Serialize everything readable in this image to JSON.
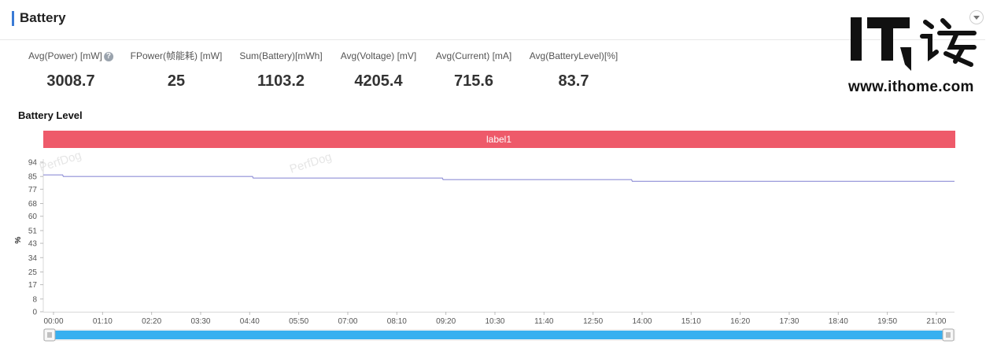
{
  "header": {
    "title": "Battery"
  },
  "stats": [
    {
      "label": "Avg(Power) [mW]",
      "value": "3008.7",
      "help_icon": "question-icon"
    },
    {
      "label": "FPower(帧能耗) [mW]",
      "value": "25"
    },
    {
      "label": "Sum(Battery)[mWh]",
      "value": "1103.2"
    },
    {
      "label": "Avg(Voltage) [mV]",
      "value": "4205.4"
    },
    {
      "label": "Avg(Current) [mA]",
      "value": "715.6"
    },
    {
      "label": "Avg(BatteryLevel)[%]",
      "value": "83.7"
    }
  ],
  "watermark": {
    "brand": "IT",
    "brand_cn": "之家",
    "url": "www.ithome.com",
    "overlay": "PerfDog"
  },
  "chart_title": "Battery Level",
  "chart_data": {
    "type": "line",
    "title": "Battery Level",
    "label_band": "label1",
    "ylabel": "%",
    "xlabel": "",
    "yticks": [
      0,
      8,
      17,
      25,
      34,
      43,
      51,
      60,
      68,
      77,
      85,
      94
    ],
    "ylim": [
      0,
      94
    ],
    "xticks": [
      "00:00",
      "01:10",
      "02:20",
      "03:30",
      "04:40",
      "05:50",
      "07:00",
      "08:10",
      "09:20",
      "10:30",
      "11:40",
      "12:50",
      "14:00",
      "15:10",
      "16:20",
      "17:30",
      "18:40",
      "19:50",
      "21:00"
    ],
    "x_end_min": 1320,
    "series": [
      {
        "points": [
          [
            0,
            86
          ],
          [
            13,
            86
          ],
          [
            14,
            85
          ],
          [
            284,
            85
          ],
          [
            285,
            84
          ],
          [
            555,
            84
          ],
          [
            556,
            83
          ],
          [
            825,
            83
          ],
          [
            826,
            82
          ],
          [
            1320,
            82
          ]
        ],
        "color": "#8f8fd6"
      }
    ],
    "band_color": "#ee5a6a",
    "grid": false
  },
  "slider": {
    "color": "#38b0f0"
  }
}
